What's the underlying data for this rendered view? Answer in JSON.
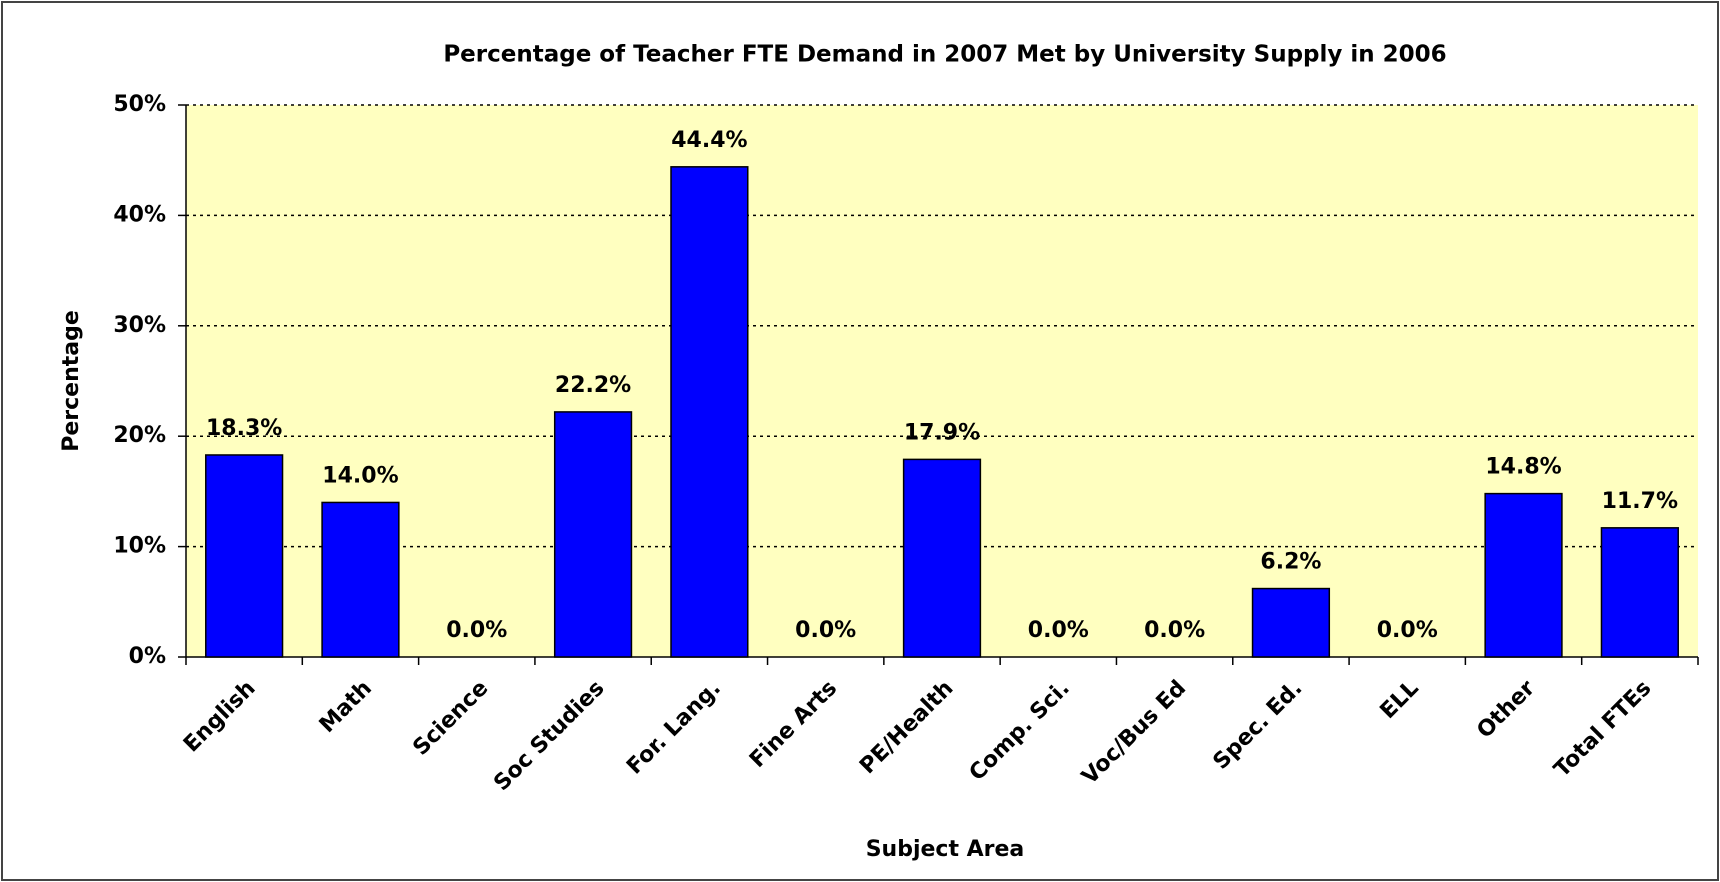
{
  "chart_data": {
    "type": "bar",
    "title": "Percentage of Teacher FTE Demand in 2007 Met by University Supply in 2006",
    "x_label": "Subject Area",
    "y_label": "Percentage",
    "categories": [
      "English",
      "Math",
      "Science",
      "Soc Studies",
      "For. Lang.",
      "Fine Arts",
      "PE/Health",
      "Comp. Sci.",
      "Voc/Bus Ed",
      "Spec. Ed.",
      "ELL",
      "Other",
      "Total FTEs"
    ],
    "values": [
      18.3,
      14.0,
      0.0,
      22.2,
      44.4,
      0.0,
      17.9,
      0.0,
      0.0,
      6.2,
      0.0,
      14.8,
      11.7
    ],
    "value_labels": [
      "18.3%",
      "14.0%",
      "0.0%",
      "22.2%",
      "44.4%",
      "0.0%",
      "17.9%",
      "0.0%",
      "0.0%",
      "6.2%",
      "0.0%",
      "14.8%",
      "11.7%"
    ],
    "color": "#0000ff",
    "ylim": [
      0,
      50
    ],
    "yticks": [
      {
        "value": 0,
        "label": "0%"
      },
      {
        "value": 10,
        "label": "10%"
      },
      {
        "value": 20,
        "label": "20%"
      },
      {
        "value": 30,
        "label": "30%"
      },
      {
        "value": 40,
        "label": "40%"
      },
      {
        "value": 50,
        "label": "50%"
      }
    ],
    "grid": true
  }
}
